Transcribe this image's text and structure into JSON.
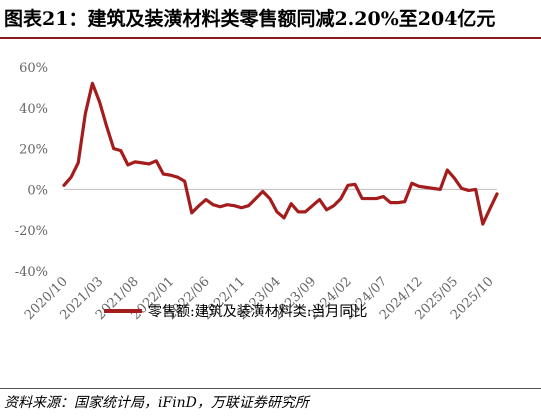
{
  "title": "图表21：建筑及装潢材料类零售额同减2.20%至204亿元",
  "source": "资料来源：国家统计局，iFinD，万联证券研究所",
  "accent_color": "#A51C1C",
  "chart_data": {
    "type": "line",
    "ylim": [
      -40,
      60
    ],
    "y_ticks": [
      "60%",
      "40%",
      "20%",
      "0%",
      "-20%",
      "-40%"
    ],
    "y_tick_values": [
      60,
      40,
      20,
      0,
      -20,
      -40
    ],
    "x_tick_labels": [
      "2020/10",
      "2021/03",
      "2021/08",
      "2022/01",
      "2022/06",
      "2022/11",
      "2023/04",
      "2023/09",
      "2024/02",
      "2024/07",
      "2024/12",
      "2025/05",
      "2025/10"
    ],
    "x_tick_index": [
      0,
      5,
      10,
      15,
      20,
      25,
      30,
      35,
      40,
      45,
      50,
      55,
      60
    ],
    "legend_position": "bottom",
    "grid": false,
    "series": [
      {
        "name": "零售额:建筑及装潢材料类:当月同比",
        "color": "#A51C1C",
        "x": [
          "2020/10",
          "2020/11",
          "2020/12",
          "2021/01",
          "2021/02",
          "2021/03",
          "2021/04",
          "2021/05",
          "2021/06",
          "2021/07",
          "2021/08",
          "2021/09",
          "2021/10",
          "2021/11",
          "2021/12",
          "2022/01",
          "2022/02",
          "2022/03",
          "2022/04",
          "2022/05",
          "2022/06",
          "2022/07",
          "2022/08",
          "2022/09",
          "2022/10",
          "2022/11",
          "2022/12",
          "2023/01",
          "2023/02",
          "2023/03",
          "2023/04",
          "2023/05",
          "2023/06",
          "2023/07",
          "2023/08",
          "2023/09",
          "2023/10",
          "2023/11",
          "2023/12",
          "2024/01",
          "2024/02",
          "2024/03",
          "2024/04",
          "2024/05",
          "2024/06",
          "2024/07",
          "2024/08",
          "2024/09",
          "2024/10",
          "2024/11",
          "2024/12",
          "2025/01",
          "2025/02",
          "2025/03",
          "2025/04",
          "2025/05",
          "2025/06",
          "2025/07",
          "2025/08",
          "2025/09",
          "2025/10",
          "2025/11"
        ],
        "values": [
          2.0,
          6.0,
          13.0,
          37.0,
          52.0,
          43.0,
          31.0,
          20.0,
          19.0,
          12.0,
          13.5,
          13.0,
          12.5,
          14.0,
          7.5,
          7.0,
          6.0,
          4.0,
          -11.5,
          -8.0,
          -5.0,
          -7.5,
          -8.5,
          -7.5,
          -8.0,
          -9.0,
          -8.0,
          -4.5,
          -1.0,
          -4.5,
          -11.0,
          -14.0,
          -7.0,
          -11.0,
          -11.0,
          -8.0,
          -5.0,
          -10.0,
          -8.0,
          -4.5,
          2.0,
          2.5,
          -4.5,
          -4.5,
          -4.5,
          -3.5,
          -6.5,
          -6.5,
          -6.0,
          3.0,
          1.5,
          1.0,
          0.5,
          0.0,
          9.5,
          5.5,
          0.5,
          -0.5,
          0.0,
          -17.0,
          -9.5,
          -2.2
        ]
      }
    ]
  }
}
